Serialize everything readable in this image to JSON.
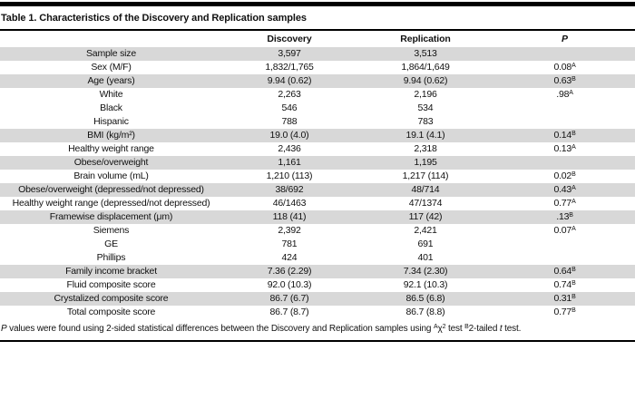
{
  "title": "Table 1. Characteristics of the Discovery and Replication samples",
  "colors": {
    "stripe": "#d8d8d8",
    "rule": "#000000",
    "background": "#ffffff",
    "text": "#111111"
  },
  "table": {
    "columns": [
      "",
      "Discovery",
      "Replication",
      "P"
    ],
    "rows": [
      {
        "label": "Sample size",
        "discovery": "3,597",
        "replication": "3,513",
        "p": "",
        "p_sup": "",
        "shaded": true
      },
      {
        "label": "Sex (M/F)",
        "discovery": "1,832/1,765",
        "replication": "1,864/1,649",
        "p": "0.08",
        "p_sup": "A",
        "shaded": false
      },
      {
        "label": "Age (years)",
        "discovery": "9.94 (0.62)",
        "replication": "9.94 (0.62)",
        "p": "0.63",
        "p_sup": "B",
        "shaded": true
      },
      {
        "label": "White",
        "discovery": "2,263",
        "replication": "2,196",
        "p": ".98",
        "p_sup": "A",
        "shaded": false
      },
      {
        "label": "Black",
        "discovery": "546",
        "replication": "534",
        "p": "",
        "p_sup": "",
        "shaded": false
      },
      {
        "label": "Hispanic",
        "discovery": "788",
        "replication": "783",
        "p": "",
        "p_sup": "",
        "shaded": false
      },
      {
        "label": "BMI (kg/m²)",
        "discovery": "19.0 (4.0)",
        "replication": "19.1 (4.1)",
        "p": "0.14",
        "p_sup": "B",
        "shaded": true
      },
      {
        "label": "Healthy weight range",
        "discovery": "2,436",
        "replication": "2,318",
        "p": "0.13",
        "p_sup": "A",
        "shaded": false
      },
      {
        "label": "Obese/overweight",
        "discovery": "1,161",
        "replication": "1,195",
        "p": "",
        "p_sup": "",
        "shaded": true
      },
      {
        "label": "Brain volume (mL)",
        "discovery": "1,210 (113)",
        "replication": "1,217 (114)",
        "p": "0.02",
        "p_sup": "B",
        "shaded": false
      },
      {
        "label": "Obese/overweight (depressed/not depressed)",
        "discovery": "38/692",
        "replication": "48/714",
        "p": "0.43",
        "p_sup": "A",
        "shaded": true
      },
      {
        "label": "Healthy weight range (depressed/not depressed)",
        "discovery": "46/1463",
        "replication": "47/1374",
        "p": "0.77",
        "p_sup": "A",
        "shaded": false
      },
      {
        "label": "Framewise displacement (μm)",
        "discovery": "118 (41)",
        "replication": "117 (42)",
        "p": ".13",
        "p_sup": "B",
        "shaded": true
      },
      {
        "label": "Siemens",
        "discovery": "2,392",
        "replication": "2,421",
        "p": "0.07",
        "p_sup": "A",
        "shaded": false
      },
      {
        "label": "GE",
        "discovery": "781",
        "replication": "691",
        "p": "",
        "p_sup": "",
        "shaded": false
      },
      {
        "label": "Phillips",
        "discovery": "424",
        "replication": "401",
        "p": "",
        "p_sup": "",
        "shaded": false
      },
      {
        "label": "Family income bracket",
        "discovery": "7.36 (2.29)",
        "replication": "7.34 (2.30)",
        "p": "0.64",
        "p_sup": "B",
        "shaded": true
      },
      {
        "label": "Fluid composite score",
        "discovery": "92.0 (10.3)",
        "replication": "92.1 (10.3)",
        "p": "0.74",
        "p_sup": "B",
        "shaded": false
      },
      {
        "label": "Crystalized composite score",
        "discovery": "86.7 (6.7)",
        "replication": "86.5 (6.8)",
        "p": "0.31",
        "p_sup": "B",
        "shaded": true
      },
      {
        "label": "Total composite score",
        "discovery": "86.7 (8.7)",
        "replication": "86.7 (8.8)",
        "p": "0.77",
        "p_sup": "B",
        "shaded": false
      }
    ]
  },
  "footnote": {
    "p_italic": "P",
    "part1": " values were found using 2-sided statistical differences between the Discovery and Replication samples using ",
    "sup_a": "A",
    "chi": "χ",
    "chi_sup": "2",
    "part2": " test ",
    "sup_b": "B",
    "part3": "2-tailed ",
    "t_italic": "t",
    "part4": " test."
  }
}
